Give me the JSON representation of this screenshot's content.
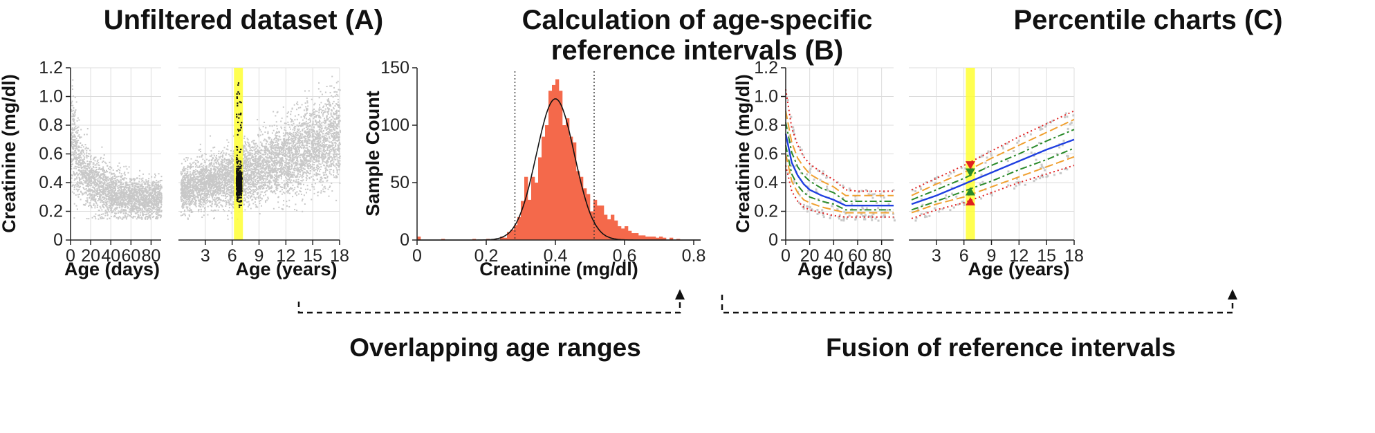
{
  "titles": {
    "a": "Unfiltered dataset (A)",
    "b_line1": "Calculation of age-specific",
    "b_line2": "reference intervals (B)",
    "c": "Percentile charts (C)"
  },
  "flow_labels": {
    "left": "Overlapping age ranges",
    "right": "Fusion of reference intervals"
  },
  "colors": {
    "scatter_grey": "#c8c8c8",
    "highlight_yellow": "#ffff33",
    "histogram_fill": "#f4694b",
    "p50": "#1f3fe0",
    "p25_p75": "#2a8a2a",
    "p10_p90": "#f0a030",
    "p2_5_p97_5": "#e02020"
  },
  "chart_data": [
    {
      "id": "A1",
      "type": "scatter",
      "xlabel": "Age (days)",
      "ylabel": "Creatinine (mg/dl)",
      "xlim": [
        0,
        90
      ],
      "ylim": [
        0,
        1.2
      ],
      "xticks": [
        "0",
        "20",
        "40",
        "60",
        "80"
      ],
      "yticks": [
        "0",
        "0.2",
        "0.4",
        "0.6",
        "0.8",
        "1.0",
        "1.2"
      ],
      "grid": true,
      "trend": [
        [
          0,
          0.75
        ],
        [
          5,
          0.6
        ],
        [
          10,
          0.5
        ],
        [
          20,
          0.4
        ],
        [
          30,
          0.36
        ],
        [
          40,
          0.33
        ],
        [
          60,
          0.3
        ],
        [
          90,
          0.28
        ]
      ]
    },
    {
      "id": "A2",
      "type": "scatter",
      "xlabel": "Age (years)",
      "xlim": [
        0,
        18
      ],
      "ylim": [
        0,
        1.2
      ],
      "xticks": [
        "3",
        "6",
        "9",
        "12",
        "15",
        "18"
      ],
      "grid": true,
      "highlight_band": [
        6.2,
        7.2
      ],
      "trend": [
        [
          0.3,
          0.35
        ],
        [
          3,
          0.4
        ],
        [
          6,
          0.45
        ],
        [
          9,
          0.5
        ],
        [
          12,
          0.58
        ],
        [
          15,
          0.66
        ],
        [
          18,
          0.74
        ]
      ]
    },
    {
      "id": "B",
      "type": "bar",
      "xlabel": "Creatinine (mg/dl)",
      "ylabel": "Sample Count",
      "xlim": [
        0,
        0.82
      ],
      "ylim": [
        0,
        150
      ],
      "xticks": [
        "0",
        "0.2",
        "0.4",
        "0.6",
        "0.8"
      ],
      "yticks": [
        "0",
        "50",
        "100",
        "150"
      ],
      "bin_width": 0.01,
      "bins": [
        [
          0.0,
          3
        ],
        [
          0.07,
          1
        ],
        [
          0.16,
          1
        ],
        [
          0.2,
          1
        ],
        [
          0.22,
          1
        ],
        [
          0.24,
          3
        ],
        [
          0.25,
          2
        ],
        [
          0.26,
          7
        ],
        [
          0.27,
          9
        ],
        [
          0.28,
          13
        ],
        [
          0.29,
          20
        ],
        [
          0.3,
          34
        ],
        [
          0.31,
          55
        ],
        [
          0.32,
          35
        ],
        [
          0.33,
          55
        ],
        [
          0.34,
          50
        ],
        [
          0.35,
          72
        ],
        [
          0.36,
          90
        ],
        [
          0.37,
          100
        ],
        [
          0.38,
          130
        ],
        [
          0.39,
          135
        ],
        [
          0.4,
          140
        ],
        [
          0.41,
          130
        ],
        [
          0.42,
          100
        ],
        [
          0.43,
          106
        ],
        [
          0.44,
          90
        ],
        [
          0.45,
          85
        ],
        [
          0.46,
          60
        ],
        [
          0.47,
          55
        ],
        [
          0.48,
          45
        ],
        [
          0.49,
          40
        ],
        [
          0.5,
          25
        ],
        [
          0.51,
          35
        ],
        [
          0.52,
          30
        ],
        [
          0.53,
          30
        ],
        [
          0.54,
          22
        ],
        [
          0.55,
          18
        ],
        [
          0.56,
          22
        ],
        [
          0.57,
          17
        ],
        [
          0.58,
          12
        ],
        [
          0.59,
          10
        ],
        [
          0.6,
          12
        ],
        [
          0.61,
          8
        ],
        [
          0.62,
          6
        ],
        [
          0.63,
          6
        ],
        [
          0.64,
          4
        ],
        [
          0.65,
          4
        ],
        [
          0.66,
          3
        ],
        [
          0.67,
          3
        ],
        [
          0.68,
          3
        ],
        [
          0.69,
          2
        ],
        [
          0.7,
          3
        ],
        [
          0.71,
          2
        ],
        [
          0.73,
          2
        ],
        [
          0.75,
          1
        ]
      ],
      "normal_fit": {
        "mean": 0.4,
        "sd": 0.055,
        "peak": 123
      },
      "reference_limits": [
        0.283,
        0.512
      ]
    },
    {
      "id": "C1",
      "type": "line",
      "xlabel": "Age (days)",
      "ylabel": "Creatinine (mg/dl)",
      "xlim": [
        0,
        90
      ],
      "ylim": [
        0,
        1.2
      ],
      "xticks": [
        "0",
        "20",
        "40",
        "60",
        "80"
      ],
      "yticks": [
        "0",
        "0.2",
        "0.4",
        "0.6",
        "0.8",
        "1.0",
        "1.2"
      ],
      "grid": true,
      "x": [
        0,
        5,
        10,
        15,
        20,
        30,
        40,
        50,
        60,
        70,
        80,
        90
      ],
      "series": [
        {
          "key": "p2_5",
          "color_key": "p2_5_p97_5",
          "dash": "2,4",
          "values": [
            0.52,
            0.34,
            0.27,
            0.23,
            0.21,
            0.19,
            0.17,
            0.16,
            0.16,
            0.16,
            0.16,
            0.16
          ]
        },
        {
          "key": "p10",
          "color_key": "p10_p90",
          "dash": "12,5",
          "values": [
            0.6,
            0.41,
            0.33,
            0.28,
            0.26,
            0.23,
            0.21,
            0.19,
            0.19,
            0.19,
            0.19,
            0.19
          ]
        },
        {
          "key": "p25",
          "color_key": "p25_p75",
          "dash": "10,4,3,4",
          "values": [
            0.66,
            0.46,
            0.38,
            0.33,
            0.3,
            0.27,
            0.25,
            0.21,
            0.21,
            0.21,
            0.21,
            0.21
          ]
        },
        {
          "key": "p50",
          "color_key": "p50",
          "dash": "",
          "values": [
            0.74,
            0.54,
            0.45,
            0.39,
            0.35,
            0.31,
            0.28,
            0.24,
            0.24,
            0.24,
            0.24,
            0.24
          ]
        },
        {
          "key": "p75",
          "color_key": "p25_p75",
          "dash": "10,4,3,4",
          "values": [
            0.82,
            0.61,
            0.51,
            0.45,
            0.41,
            0.36,
            0.33,
            0.27,
            0.27,
            0.27,
            0.27,
            0.27
          ]
        },
        {
          "key": "p90",
          "color_key": "p10_p90",
          "dash": "12,5",
          "values": [
            0.9,
            0.68,
            0.57,
            0.51,
            0.46,
            0.41,
            0.37,
            0.31,
            0.31,
            0.31,
            0.31,
            0.31
          ]
        },
        {
          "key": "p97_5",
          "color_key": "p2_5_p97_5",
          "dash": "2,4",
          "values": [
            1.05,
            0.78,
            0.66,
            0.58,
            0.53,
            0.47,
            0.42,
            0.35,
            0.34,
            0.34,
            0.34,
            0.34
          ]
        }
      ]
    },
    {
      "id": "C2",
      "type": "line",
      "xlabel": "Age (years)",
      "xlim": [
        0,
        18
      ],
      "ylim": [
        0,
        1.2
      ],
      "xticks": [
        "3",
        "6",
        "9",
        "12",
        "15",
        "18"
      ],
      "grid": true,
      "highlight_band": [
        6.2,
        7.2
      ],
      "x": [
        0.3,
        3,
        6,
        9,
        12,
        15,
        18
      ],
      "series": [
        {
          "key": "p2_5",
          "color_key": "p2_5_p97_5",
          "dash": "2,4",
          "values": [
            0.15,
            0.21,
            0.26,
            0.33,
            0.4,
            0.46,
            0.52
          ]
        },
        {
          "key": "p10",
          "color_key": "p10_p90",
          "dash": "12,5",
          "values": [
            0.19,
            0.25,
            0.3,
            0.37,
            0.44,
            0.51,
            0.58
          ]
        },
        {
          "key": "p25",
          "color_key": "p25_p75",
          "dash": "10,4,3,4",
          "values": [
            0.21,
            0.27,
            0.34,
            0.41,
            0.49,
            0.56,
            0.64
          ]
        },
        {
          "key": "p50",
          "color_key": "p50",
          "dash": "",
          "values": [
            0.25,
            0.31,
            0.39,
            0.47,
            0.55,
            0.63,
            0.7
          ]
        },
        {
          "key": "p75",
          "color_key": "p25_p75",
          "dash": "10,4,3,4",
          "values": [
            0.28,
            0.35,
            0.43,
            0.52,
            0.6,
            0.69,
            0.77
          ]
        },
        {
          "key": "p90",
          "color_key": "p10_p90",
          "dash": "12,5",
          "values": [
            0.31,
            0.39,
            0.47,
            0.57,
            0.66,
            0.75,
            0.84
          ]
        },
        {
          "key": "p97_5",
          "color_key": "p2_5_p97_5",
          "dash": "2,4",
          "values": [
            0.35,
            0.43,
            0.52,
            0.62,
            0.72,
            0.81,
            0.9
          ]
        }
      ],
      "markers": [
        {
          "value": 0.52,
          "color_key": "p2_5_p97_5",
          "dir": "down"
        },
        {
          "value": 0.47,
          "color_key": "p25_p75",
          "dir": "down"
        },
        {
          "value": 0.34,
          "color_key": "p25_p75",
          "dir": "up"
        },
        {
          "value": 0.27,
          "color_key": "p2_5_p97_5",
          "dir": "up"
        }
      ]
    }
  ]
}
